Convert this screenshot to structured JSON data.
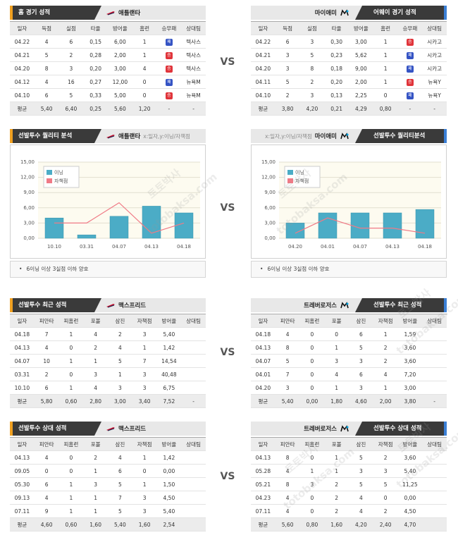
{
  "vs": "VS",
  "watermark": [
    "토토박사",
    "totobaksa.com"
  ],
  "result_colors": {
    "승": "#e0343a",
    "패": "#3453c4"
  },
  "panels": [
    {
      "title": "홈 경기 성적",
      "team": "애틀랜타",
      "columns": [
        "일자",
        "득점",
        "실점",
        "타율",
        "방어율",
        "홈런",
        "승무패",
        "상대팀"
      ],
      "rows": [
        [
          "04.22",
          "4",
          "6",
          "0,15",
          "6,00",
          "1",
          "패",
          "텍사스"
        ],
        [
          "04.21",
          "5",
          "2",
          "0,28",
          "2,00",
          "1",
          "승",
          "텍사스"
        ],
        [
          "04.20",
          "8",
          "3",
          "0,20",
          "3,00",
          "4",
          "승",
          "텍사스"
        ],
        [
          "04.12",
          "4",
          "16",
          "0,27",
          "12,00",
          "0",
          "패",
          "뉴욕M"
        ],
        [
          "04.10",
          "6",
          "5",
          "0,33",
          "5,00",
          "0",
          "승",
          "뉴욕M"
        ]
      ],
      "average": [
        "평균",
        "5,40",
        "6,40",
        "0,25",
        "5,60",
        "1,20",
        "-",
        "-"
      ]
    },
    {
      "title": "어웨이 경기 성적",
      "team": "마이애미",
      "columns": [
        "일자",
        "득점",
        "실점",
        "타율",
        "방어율",
        "홈런",
        "승무패",
        "상대팀"
      ],
      "rows": [
        [
          "04.22",
          "6",
          "3",
          "0,30",
          "3,00",
          "1",
          "승",
          "시카고"
        ],
        [
          "04.21",
          "3",
          "5",
          "0,23",
          "5,62",
          "1",
          "패",
          "시카고"
        ],
        [
          "04.20",
          "3",
          "8",
          "0,18",
          "9,00",
          "1",
          "패",
          "시카고"
        ],
        [
          "04.11",
          "5",
          "2",
          "0,20",
          "2,00",
          "1",
          "승",
          "뉴욕Y"
        ],
        [
          "04.10",
          "2",
          "3",
          "0,13",
          "2,25",
          "0",
          "패",
          "뉴욕Y"
        ]
      ],
      "average": [
        "평균",
        "3,80",
        "4,20",
        "0,21",
        "4,29",
        "0,80",
        "-",
        "-"
      ]
    },
    {
      "title": "선발투수 최근 성적",
      "team": "맥스프리드",
      "columns": [
        "일자",
        "피안타",
        "피홈런",
        "포볼",
        "삼진",
        "자책점",
        "방어율",
        "상대팀"
      ],
      "rows": [
        [
          "04.18",
          "7",
          "1",
          "4",
          "2",
          "3",
          "5,40"
        ],
        [
          "04.13",
          "4",
          "0",
          "2",
          "4",
          "1",
          "1,42"
        ],
        [
          "04.07",
          "10",
          "1",
          "1",
          "5",
          "7",
          "14,54"
        ],
        [
          "03.31",
          "2",
          "0",
          "3",
          "1",
          "3",
          "40,48"
        ],
        [
          "10.10",
          "6",
          "1",
          "4",
          "3",
          "3",
          "6,75"
        ]
      ],
      "average": [
        "평균",
        "5,80",
        "0,60",
        "2,80",
        "3,00",
        "3,40",
        "7,52",
        "-"
      ]
    },
    {
      "title": "선발투수 최근 성적",
      "team": "트레버로저스",
      "columns": [
        "일자",
        "피안타",
        "피홈런",
        "포볼",
        "삼진",
        "자책점",
        "방어율",
        "상대팀"
      ],
      "rows": [
        [
          "04.18",
          "4",
          "0",
          "0",
          "6",
          "1",
          "1,59"
        ],
        [
          "04.13",
          "8",
          "0",
          "1",
          "5",
          "2",
          "3,60"
        ],
        [
          "04.07",
          "5",
          "0",
          "3",
          "3",
          "2",
          "3,60"
        ],
        [
          "04.01",
          "7",
          "0",
          "4",
          "6",
          "4",
          "7,20"
        ],
        [
          "04.20",
          "3",
          "0",
          "1",
          "3",
          "1",
          "3,00"
        ]
      ],
      "average": [
        "평균",
        "5,40",
        "0,00",
        "1,80",
        "4,60",
        "2,00",
        "3,80",
        "-"
      ]
    },
    {
      "title": "선발투수 상대 성적",
      "team": "맥스프리드",
      "columns": [
        "일자",
        "피안타",
        "피홈런",
        "포볼",
        "삼진",
        "자책점",
        "방어율",
        "상대팀"
      ],
      "rows": [
        [
          "04.13",
          "4",
          "0",
          "2",
          "4",
          "1",
          "1,42"
        ],
        [
          "09.05",
          "0",
          "0",
          "1",
          "6",
          "0",
          "0,00"
        ],
        [
          "05.30",
          "6",
          "1",
          "3",
          "5",
          "1",
          "1,50"
        ],
        [
          "09.13",
          "4",
          "1",
          "1",
          "7",
          "3",
          "4,50"
        ],
        [
          "07.11",
          "9",
          "1",
          "1",
          "5",
          "3",
          "5,40"
        ]
      ],
      "average": [
        "평균",
        "4,60",
        "0,60",
        "1,60",
        "5,40",
        "1,60",
        "2,54"
      ]
    },
    {
      "title": "선발투수 상대 성적",
      "team": "트레버로저스",
      "columns": [
        "일자",
        "피안타",
        "피홈런",
        "포볼",
        "삼진",
        "자책점",
        "방어율",
        "상대팀"
      ],
      "rows": [
        [
          "04.13",
          "8",
          "0",
          "1",
          "5",
          "2",
          "3,60"
        ],
        [
          "05.28",
          "4",
          "1",
          "1",
          "3",
          "3",
          "5,40"
        ],
        [
          "05.21",
          "8",
          "3",
          "2",
          "5",
          "5",
          "11,25"
        ],
        [
          "04.23",
          "4",
          "0",
          "2",
          "4",
          "0",
          "0,00"
        ],
        [
          "07.11",
          "4",
          "0",
          "2",
          "4",
          "2",
          "4,50"
        ]
      ],
      "average": [
        "평균",
        "5,60",
        "0,80",
        "1,60",
        "4,20",
        "2,40",
        "4,70"
      ]
    }
  ],
  "chart_data": [
    {
      "type": "bar",
      "title": "선발투수 퀄리티 분석",
      "team": "애틀랜타",
      "note": "x:일자,y:이닝/자책점",
      "categories": [
        "10.10",
        "03.31",
        "04.07",
        "04.13",
        "04.18"
      ],
      "series": [
        {
          "name": "이닝",
          "color": "#4bacc6",
          "values": [
            4,
            0.67,
            4.33,
            6.33,
            5
          ]
        },
        {
          "name": "자책점",
          "type": "line",
          "color": "#f07a86",
          "values": [
            3,
            3,
            7,
            1,
            3
          ]
        }
      ],
      "ylim": [
        0,
        15
      ],
      "yticks": [
        {
          "value": 0,
          "label": "0,00"
        },
        {
          "value": 3,
          "label": "3,00"
        },
        {
          "value": 6,
          "label": "6,00"
        },
        {
          "value": 9,
          "label": "9,00"
        },
        {
          "value": 12,
          "label": "12,00"
        },
        {
          "value": 15,
          "label": "15,00"
        }
      ],
      "grid": true,
      "legend": "upper left",
      "footnote": "6이닝 이상 3실점 이하 양호"
    },
    {
      "type": "bar",
      "title": "선발투수 퀄리티분석",
      "team": "마이애미",
      "note": "x:일자,y:이닝/자책점",
      "categories": [
        "04.20",
        "04.01",
        "04.07",
        "04.13",
        "04.18"
      ],
      "series": [
        {
          "name": "이닝",
          "color": "#4bacc6",
          "values": [
            3,
            5,
            5,
            5,
            5.67
          ]
        },
        {
          "name": "자책점",
          "type": "line",
          "color": "#f07a86",
          "values": [
            1,
            4,
            2,
            2,
            1
          ]
        }
      ],
      "ylim": [
        0,
        15
      ],
      "yticks": [
        {
          "value": 0,
          "label": "0,00"
        },
        {
          "value": 3,
          "label": "3,00"
        },
        {
          "value": 6,
          "label": "6,00"
        },
        {
          "value": 9,
          "label": "9,00"
        },
        {
          "value": 12,
          "label": "12,00"
        },
        {
          "value": 15,
          "label": "15,00"
        }
      ],
      "grid": true,
      "legend": "upper left",
      "footnote": "6이닝 이상 3실점 이하 양호"
    }
  ]
}
